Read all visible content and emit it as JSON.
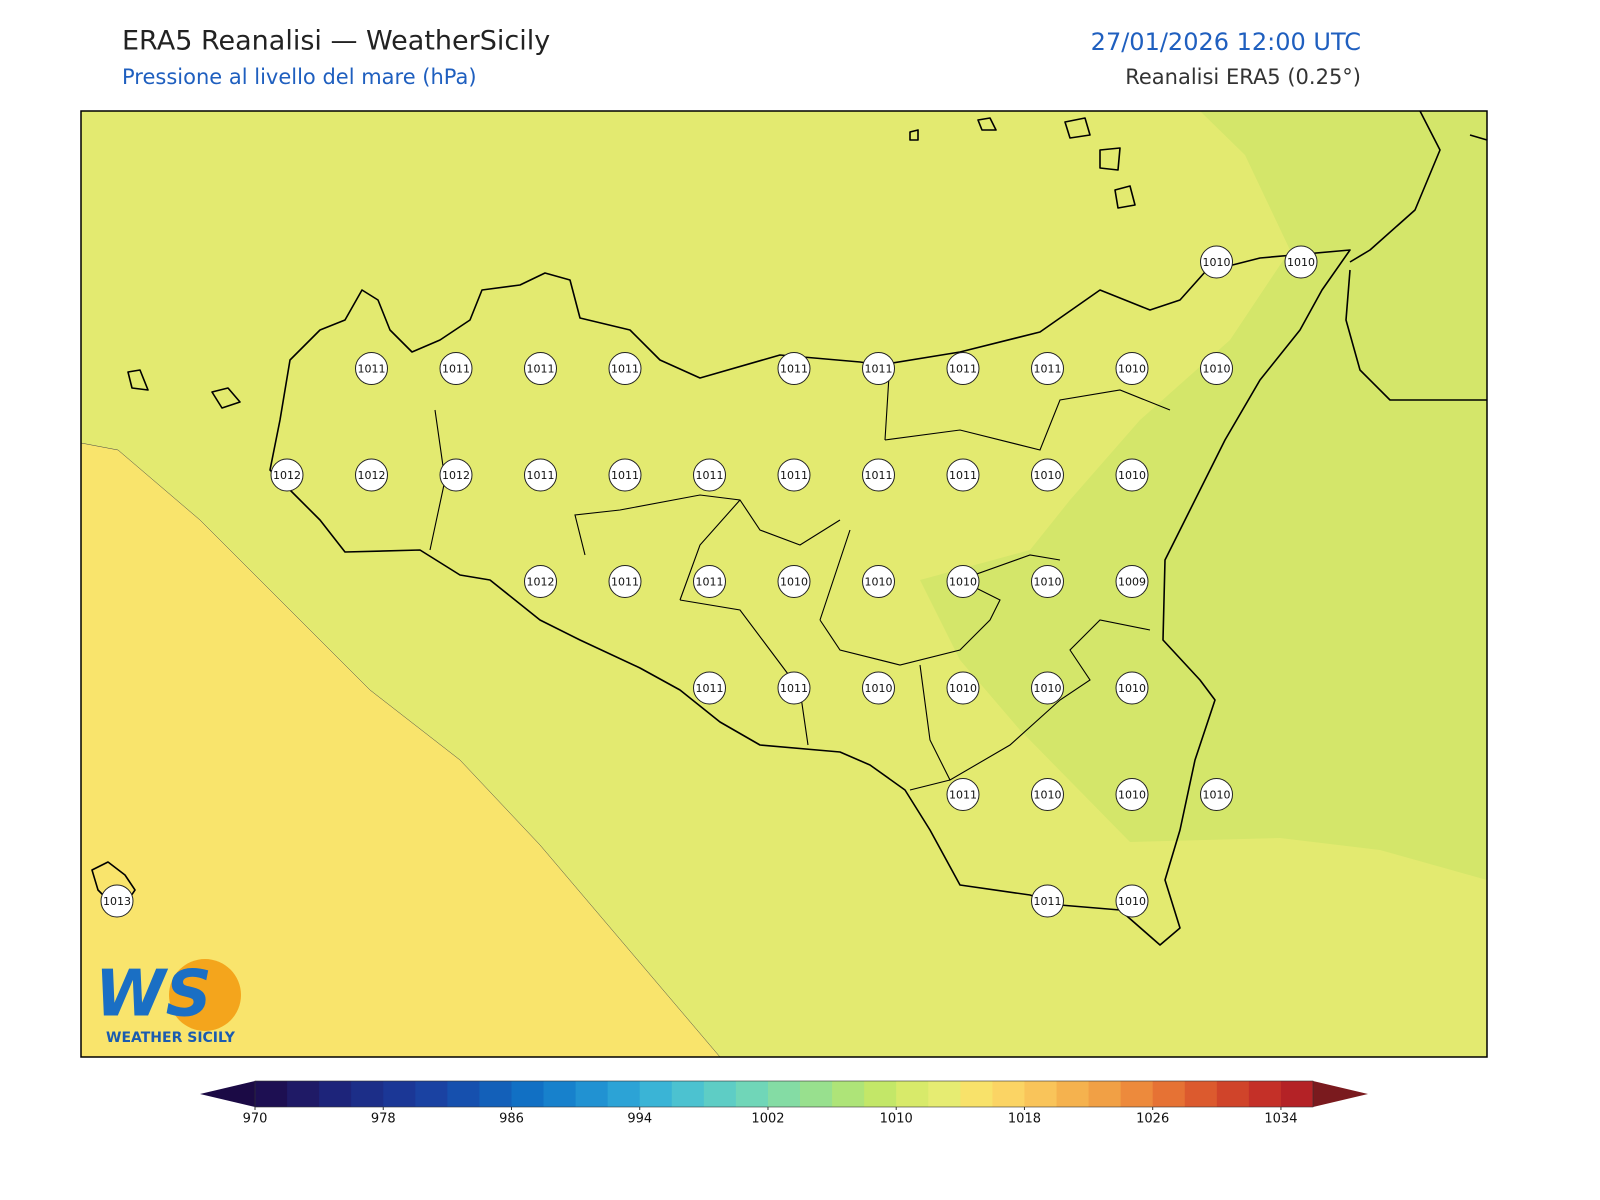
{
  "header": {
    "title": "ERA5 Reanalisi — WeatherSicily",
    "subtitle": "Pressione al livello del mare (hPa)",
    "datetime": "27/01/2026 12:00 UTC",
    "source": "Reanalisi ERA5 (0.25°)"
  },
  "stations": [
    1010,
    1010,
    1011,
    1011,
    1011,
    1011,
    1011,
    1011,
    1011,
    1011,
    1010,
    1010,
    1012,
    1012,
    1012,
    1011,
    1011,
    1011,
    1011,
    1011,
    1011,
    1010,
    1010,
    1012,
    1011,
    1011,
    1010,
    1010,
    1010,
    1010,
    1009,
    1011,
    1011,
    1010,
    1010,
    1010,
    1010,
    1011,
    1010,
    1010,
    1010,
    1013,
    1011,
    1010
  ],
  "logo": {
    "mark": "WS",
    "text": "WEATHER SICILY"
  },
  "colorbar": {
    "lim": [
      970,
      1036
    ],
    "ticks": [
      970,
      978,
      986,
      994,
      1002,
      1010,
      1018,
      1026,
      1034
    ],
    "colors": [
      "#1d0f52",
      "#1f1a66",
      "#1d247a",
      "#1c2e88",
      "#1b3796",
      "#1a42a2",
      "#1650ae",
      "#1360b9",
      "#1170c4",
      "#1781cc",
      "#2192d2",
      "#2ca3d6",
      "#3ab4d6",
      "#4cc2d0",
      "#5ecdc5",
      "#70d6b8",
      "#84dca4",
      "#98e08e",
      "#aee478",
      "#c3e768",
      "#d8ea6a",
      "#e6ec72",
      "#f8e26a",
      "#fbd464",
      "#f9c45a",
      "#f5b24e",
      "#f1a045",
      "#ed8a3c",
      "#e67234",
      "#dc5a2e",
      "#d0442a",
      "#c43028",
      "#b42226"
    ],
    "under_color": "#1b0a45",
    "over_color": "#7a1a1e"
  }
}
